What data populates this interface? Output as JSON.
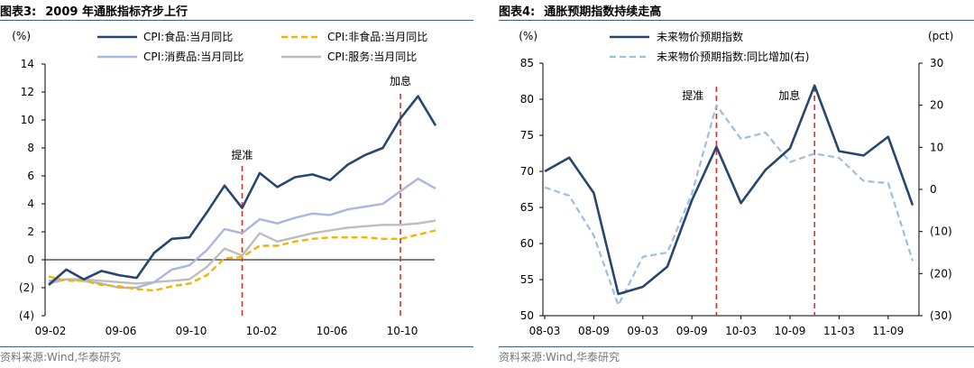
{
  "left_panel": {
    "title_prefix": "图表3:",
    "title_text": "2009 年通胀指标齐步上行",
    "source": "资料来源:Wind,华泰研究"
  },
  "right_panel": {
    "title_prefix": "图表4:",
    "title_text": "通胀预期指数持续走高",
    "source": "资料来源:Wind,华泰研究"
  },
  "colors": {
    "rule": "#3d5f8c",
    "dark_blue": "#27466e",
    "gold": "#f4b400",
    "light_blue": "#a9b6e0",
    "gray": "#bdbdbd",
    "dashed_blue": "#9dbfdf",
    "event_red": "#e03030"
  },
  "chart_data": [
    {
      "type": "line",
      "unit_label": "(%)",
      "ylim": [
        -4,
        14
      ],
      "yticks": [
        -4,
        -2,
        0,
        2,
        4,
        6,
        8,
        10,
        12,
        14
      ],
      "ytick_labels": [
        "(4)",
        "(2)",
        "0",
        "2",
        "4",
        "6",
        "8",
        "10",
        "12",
        "14"
      ],
      "x_tick_labels": [
        "09-02",
        "09-06",
        "09-10",
        "10-02",
        "10-06",
        "10-10"
      ],
      "x": [
        "09-02",
        "09-03",
        "09-04",
        "09-05",
        "09-06",
        "09-07",
        "09-08",
        "09-09",
        "09-10",
        "09-11",
        "09-12",
        "10-01",
        "10-02",
        "10-03",
        "10-04",
        "10-05",
        "10-06",
        "10-07",
        "10-08",
        "10-09",
        "10-10",
        "10-11",
        "10-12"
      ],
      "series": [
        {
          "name": "CPI:食品:当月同比",
          "style": "solid-dark",
          "values": [
            -1.8,
            -0.7,
            -1.4,
            -0.8,
            -1.1,
            -1.3,
            0.5,
            1.5,
            1.6,
            3.4,
            5.3,
            3.7,
            6.2,
            5.2,
            5.9,
            6.1,
            5.7,
            6.8,
            7.5,
            8.0,
            10.1,
            11.7,
            9.6
          ]
        },
        {
          "name": "CPI:非食品:当月同比",
          "style": "dashed-gold",
          "values": [
            -1.2,
            -1.5,
            -1.5,
            -1.8,
            -1.9,
            -2.1,
            -2.2,
            -1.9,
            -1.7,
            -1.1,
            0.1,
            0.2,
            1.0,
            1.0,
            1.3,
            1.5,
            1.6,
            1.6,
            1.6,
            1.5,
            1.5,
            1.8,
            2.1
          ]
        },
        {
          "name": "CPI:消费品:当月同比",
          "style": "solid-lightblue",
          "values": [
            -1.5,
            -1.4,
            -1.5,
            -1.7,
            -2.0,
            -2.0,
            -1.6,
            -0.7,
            -0.4,
            0.7,
            2.2,
            1.9,
            2.9,
            2.6,
            3.0,
            3.3,
            3.2,
            3.6,
            3.8,
            4.0,
            4.9,
            5.8,
            5.1
          ]
        },
        {
          "name": "CPI:服务:当月同比",
          "style": "solid-gray",
          "values": [
            -1.7,
            -1.4,
            -1.4,
            -1.5,
            -1.6,
            -1.7,
            -1.6,
            -1.5,
            -1.4,
            -0.5,
            0.8,
            0.3,
            1.9,
            1.3,
            1.6,
            1.9,
            2.1,
            2.3,
            2.4,
            2.5,
            2.5,
            2.6,
            2.8
          ]
        }
      ],
      "events": [
        {
          "label": "提准",
          "x": "10-01"
        },
        {
          "label": "加息",
          "x": "10-10"
        }
      ]
    },
    {
      "type": "line",
      "left_unit_label": "(%)",
      "right_unit_label": "(pct)",
      "ylim_left": [
        50,
        85
      ],
      "yticks_left": [
        50,
        55,
        60,
        65,
        70,
        75,
        80,
        85
      ],
      "ylim_right": [
        -30,
        30
      ],
      "yticks_right": [
        -30,
        -20,
        -10,
        0,
        10,
        20,
        30
      ],
      "ytick_labels_right": [
        "(30)",
        "(20)",
        "(10)",
        "0",
        "10",
        "20",
        "30"
      ],
      "x_tick_labels": [
        "08-03",
        "08-09",
        "09-03",
        "09-09",
        "10-03",
        "10-09",
        "11-03",
        "11-09"
      ],
      "x": [
        "08-03",
        "08-06",
        "08-09",
        "08-12",
        "09-03",
        "09-06",
        "09-09",
        "09-12",
        "10-03",
        "10-06",
        "10-09",
        "10-12",
        "11-03",
        "11-06",
        "11-09",
        "11-12"
      ],
      "series": [
        {
          "name": "未来物价预期指数",
          "axis": "left",
          "style": "solid-dark",
          "values": [
            70.0,
            71.9,
            67.0,
            53.0,
            54.0,
            56.8,
            66.0,
            73.4,
            65.6,
            70.2,
            73.2,
            81.9,
            72.8,
            72.2,
            74.8,
            65.3
          ]
        },
        {
          "name": "未来物价预期指数:同比增加(右)",
          "axis": "right",
          "style": "dashed-blue",
          "values": [
            0.5,
            -1.5,
            -11,
            -27.5,
            -16,
            -15,
            -1,
            20,
            12,
            13.5,
            6.5,
            8.5,
            7.5,
            2,
            1.5,
            -17
          ]
        }
      ],
      "events": [
        {
          "label": "提准",
          "x": "09-12"
        },
        {
          "label": "加息",
          "x": "10-12"
        }
      ]
    }
  ]
}
